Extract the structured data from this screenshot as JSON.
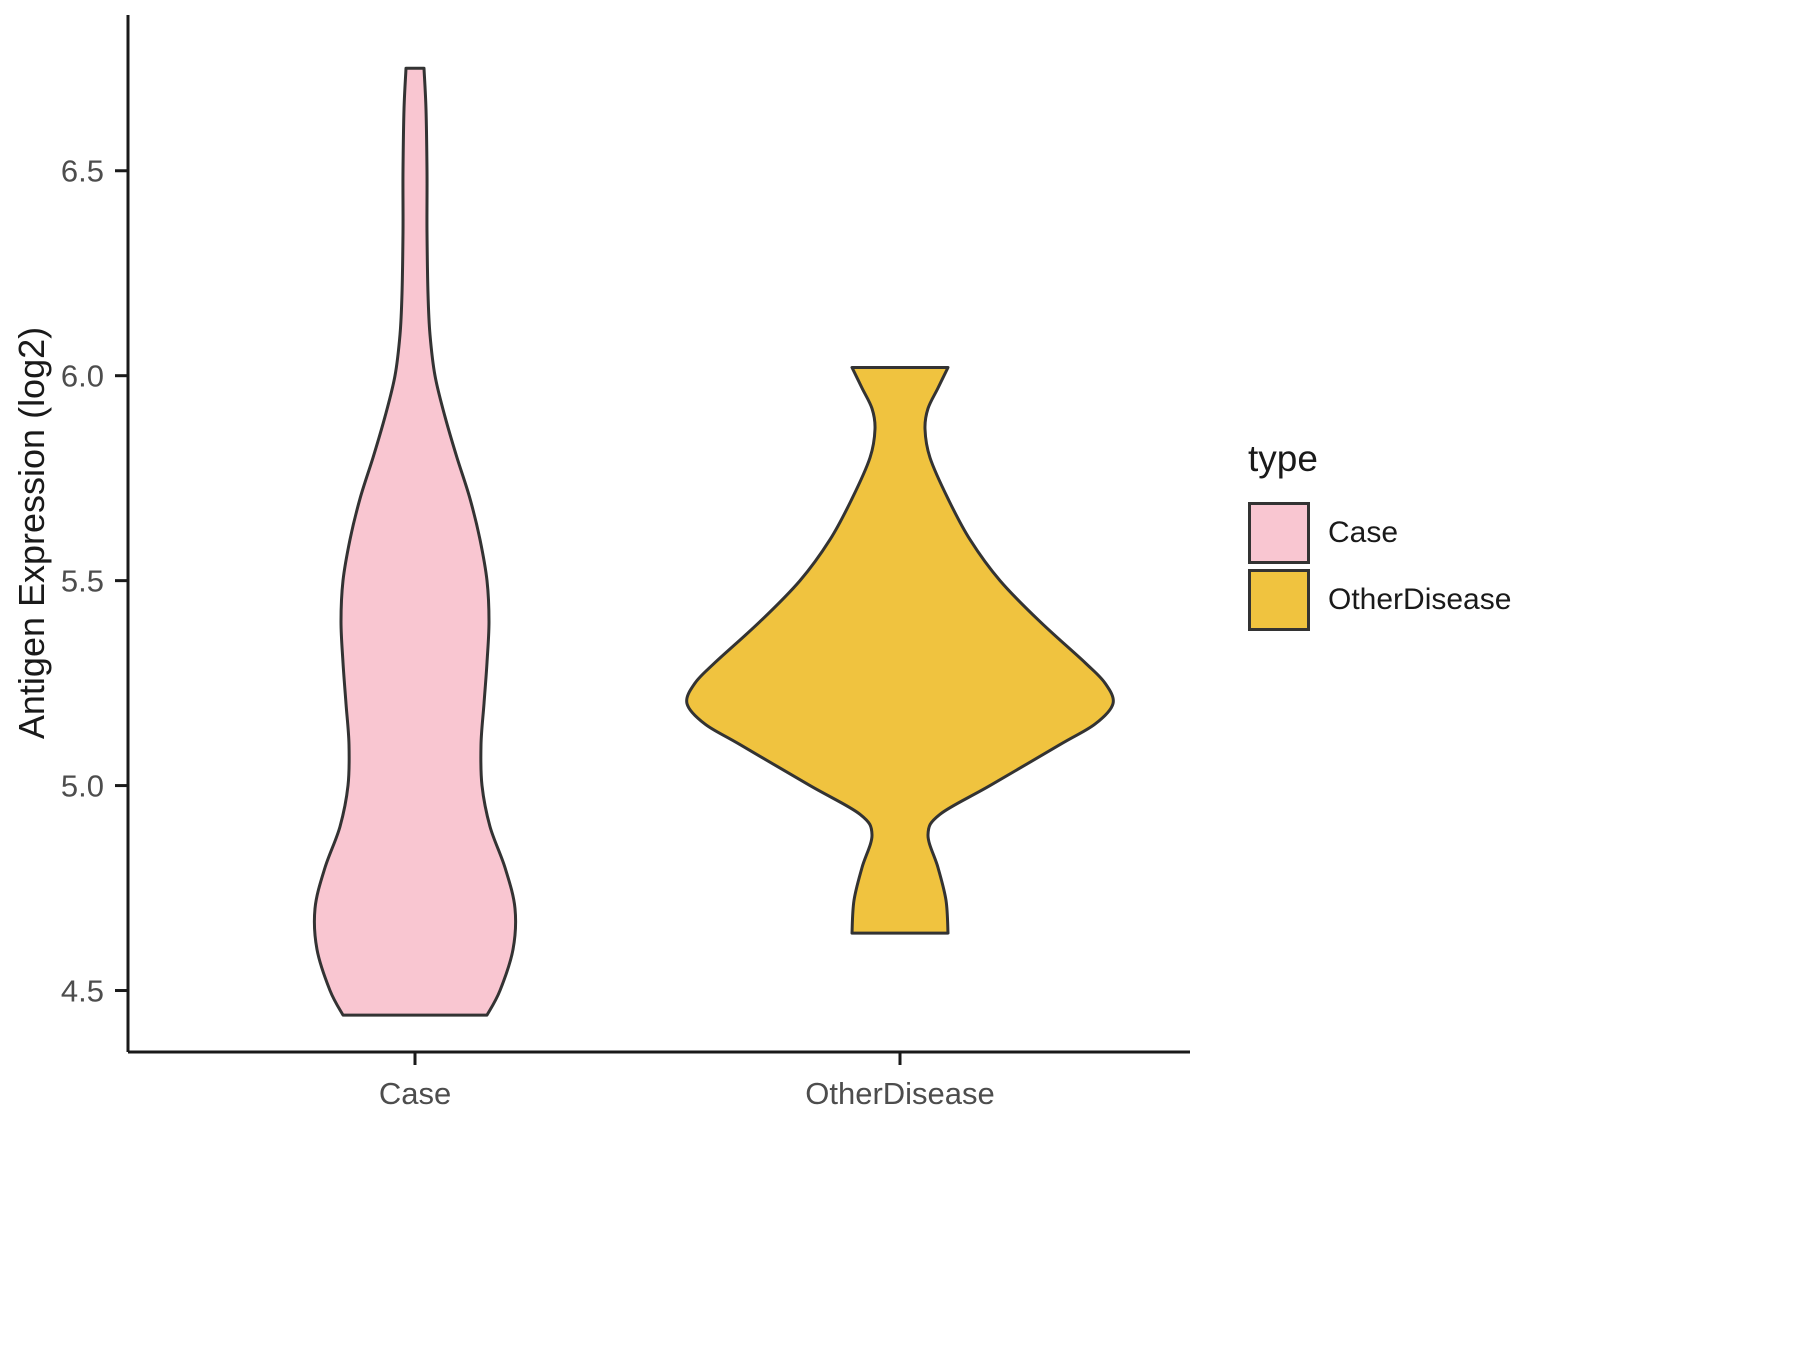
{
  "chart_data": {
    "type": "violin",
    "title": "",
    "xlabel": "",
    "ylabel": "Antigen Expression (log2)",
    "legend_title": "type",
    "legend_position": "right",
    "grid": false,
    "background": "#ffffff",
    "axis_color": "#1a1a1a",
    "tick_label_color": "#4D4D4D",
    "categories": [
      "Case",
      "OtherDisease"
    ],
    "yticks": [
      4.5,
      5.0,
      5.5,
      6.0,
      6.5
    ],
    "ytick_labels": [
      "4.5",
      "5.0",
      "5.5",
      "6.0",
      "6.5"
    ],
    "ylim": [
      4.35,
      6.88
    ],
    "legend_entries": [
      {
        "label": "Case",
        "color": "#F9C6D1"
      },
      {
        "label": "OtherDisease",
        "color": "#F0C33F"
      }
    ],
    "series": [
      {
        "name": "Case",
        "fill": "#F9C6D1",
        "stroke": "#333333",
        "y_range": [
          4.44,
          6.75
        ],
        "profile": [
          [
            6.75,
            9
          ],
          [
            6.65,
            11
          ],
          [
            6.5,
            12
          ],
          [
            6.35,
            12
          ],
          [
            6.2,
            13
          ],
          [
            6.1,
            15
          ],
          [
            6.0,
            20
          ],
          [
            5.9,
            30
          ],
          [
            5.8,
            42
          ],
          [
            5.7,
            55
          ],
          [
            5.6,
            65
          ],
          [
            5.5,
            72
          ],
          [
            5.4,
            74
          ],
          [
            5.3,
            72
          ],
          [
            5.2,
            69
          ],
          [
            5.1,
            66
          ],
          [
            5.0,
            67
          ],
          [
            4.9,
            75
          ],
          [
            4.8,
            90
          ],
          [
            4.7,
            100
          ],
          [
            4.6,
            98
          ],
          [
            4.5,
            85
          ],
          [
            4.44,
            72
          ]
        ]
      },
      {
        "name": "OtherDisease",
        "fill": "#F0C33F",
        "stroke": "#333333",
        "y_range": [
          4.64,
          6.02
        ],
        "profile": [
          [
            6.02,
            48
          ],
          [
            5.97,
            38
          ],
          [
            5.92,
            28
          ],
          [
            5.87,
            25
          ],
          [
            5.8,
            30
          ],
          [
            5.7,
            48
          ],
          [
            5.6,
            70
          ],
          [
            5.5,
            100
          ],
          [
            5.4,
            140
          ],
          [
            5.3,
            185
          ],
          [
            5.25,
            205
          ],
          [
            5.2,
            213
          ],
          [
            5.15,
            195
          ],
          [
            5.1,
            160
          ],
          [
            5.0,
            90
          ],
          [
            4.93,
            40
          ],
          [
            4.88,
            28
          ],
          [
            4.8,
            38
          ],
          [
            4.72,
            46
          ],
          [
            4.64,
            48
          ]
        ]
      }
    ]
  }
}
